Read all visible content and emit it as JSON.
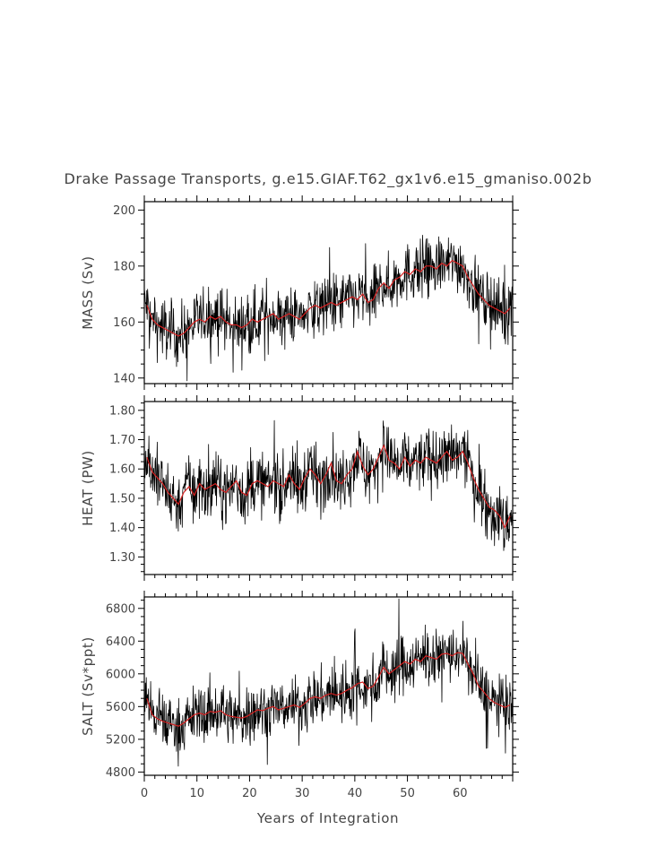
{
  "chart_data": {
    "type": "line",
    "title": "Drake Passage Transports, g.e15.GIAF.T62_gx1v6.e15_gmaniso.002b",
    "xlabel": "Years of Integration",
    "xlim": [
      0,
      70
    ],
    "x_ticks": [
      0,
      10,
      20,
      30,
      40,
      50,
      60
    ],
    "x_tick_labels": [
      "0",
      "10",
      "20",
      "30",
      "40",
      "50",
      "60"
    ],
    "series_colors": {
      "monthly": "#000000",
      "annual": "#d62020"
    },
    "panels": [
      {
        "id": "mass",
        "ylabel": "MASS (Sv)",
        "ylim": [
          138,
          203
        ],
        "y_ticks": [
          140,
          160,
          180,
          200
        ],
        "y_tick_labels": [
          "140",
          "160",
          "180",
          "200"
        ],
        "noise": 7,
        "monthly_extremes": {
          "max": 201,
          "min": 139
        },
        "annual_x": [
          0.5,
          1.5,
          2.5,
          3.5,
          4.5,
          5.5,
          6.5,
          7.5,
          8.5,
          9.5,
          10.5,
          11.5,
          12.5,
          13.5,
          14.5,
          15.5,
          16.5,
          17.5,
          18.5,
          19.5,
          20.5,
          21.5,
          22.5,
          23.5,
          24.5,
          25.5,
          26.5,
          27.5,
          28.5,
          29.5,
          30.5,
          31.5,
          32.5,
          33.5,
          34.5,
          35.5,
          36.5,
          37.5,
          38.5,
          39.5,
          40.5,
          41.5,
          42.5,
          43.5,
          44.5,
          45.5,
          46.5,
          47.5,
          48.5,
          49.5,
          50.5,
          51.5,
          52.5,
          53.5,
          54.5,
          55.5,
          56.5,
          57.5,
          58.5,
          59.5,
          60.5,
          61.5,
          62.5,
          63.5,
          64.5,
          65.5,
          66.5,
          67.5,
          68.5,
          69.5
        ],
        "annual_values": [
          166,
          161,
          159,
          158,
          157,
          156,
          155,
          156,
          158,
          160,
          161,
          160,
          162,
          161,
          162,
          160,
          159,
          159,
          158,
          159,
          161,
          160,
          161,
          162,
          163,
          161,
          162,
          163,
          162,
          161,
          163,
          165,
          166,
          165,
          166,
          167,
          166,
          167,
          168,
          169,
          168,
          170,
          167,
          168,
          172,
          174,
          172,
          175,
          176,
          178,
          177,
          179,
          178,
          180,
          180,
          179,
          181,
          180,
          182,
          181,
          180,
          176,
          173,
          170,
          168,
          166,
          165,
          164,
          163,
          165
        ]
      },
      {
        "id": "heat",
        "ylabel": "HEAT (PW)",
        "ylim": [
          1.24,
          1.83
        ],
        "y_ticks": [
          1.3,
          1.4,
          1.5,
          1.6,
          1.7,
          1.8
        ],
        "y_tick_labels": [
          "1.30",
          "1.40",
          "1.50",
          "1.60",
          "1.70",
          "1.80"
        ],
        "noise": 0.07,
        "monthly_extremes": {
          "max": 1.83,
          "min": 1.28
        },
        "annual_x": [
          0.5,
          1.5,
          2.5,
          3.5,
          4.5,
          5.5,
          6.5,
          7.5,
          8.5,
          9.5,
          10.5,
          11.5,
          12.5,
          13.5,
          14.5,
          15.5,
          16.5,
          17.5,
          18.5,
          19.5,
          20.5,
          21.5,
          22.5,
          23.5,
          24.5,
          25.5,
          26.5,
          27.5,
          28.5,
          29.5,
          30.5,
          31.5,
          32.5,
          33.5,
          34.5,
          35.5,
          36.5,
          37.5,
          38.5,
          39.5,
          40.5,
          41.5,
          42.5,
          43.5,
          44.5,
          45.5,
          46.5,
          47.5,
          48.5,
          49.5,
          50.5,
          51.5,
          52.5,
          53.5,
          54.5,
          55.5,
          56.5,
          57.5,
          58.5,
          59.5,
          60.5,
          61.5,
          62.5,
          63.5,
          64.5,
          65.5,
          66.5,
          67.5,
          68.5,
          69.5
        ],
        "annual_values": [
          1.64,
          1.59,
          1.57,
          1.55,
          1.52,
          1.5,
          1.48,
          1.52,
          1.54,
          1.51,
          1.55,
          1.53,
          1.54,
          1.55,
          1.53,
          1.52,
          1.54,
          1.56,
          1.52,
          1.51,
          1.55,
          1.56,
          1.55,
          1.54,
          1.56,
          1.55,
          1.54,
          1.58,
          1.55,
          1.53,
          1.57,
          1.6,
          1.58,
          1.55,
          1.58,
          1.62,
          1.56,
          1.55,
          1.58,
          1.6,
          1.66,
          1.61,
          1.58,
          1.6,
          1.64,
          1.68,
          1.63,
          1.62,
          1.6,
          1.64,
          1.61,
          1.63,
          1.62,
          1.64,
          1.63,
          1.62,
          1.64,
          1.66,
          1.63,
          1.64,
          1.66,
          1.62,
          1.57,
          1.53,
          1.5,
          1.47,
          1.46,
          1.44,
          1.4,
          1.44
        ]
      },
      {
        "id": "salt",
        "ylabel": "SALT (Sv*ppt)",
        "ylim": [
          4760,
          6940
        ],
        "y_ticks": [
          4800,
          5200,
          5600,
          6000,
          6400,
          6800
        ],
        "y_tick_labels": [
          "4800",
          "5200",
          "5600",
          "6000",
          "6400",
          "6800"
        ],
        "noise": 230,
        "monthly_extremes": {
          "max": 6940,
          "min": 4790
        },
        "annual_x": [
          0.5,
          1.5,
          2.5,
          3.5,
          4.5,
          5.5,
          6.5,
          7.5,
          8.5,
          9.5,
          10.5,
          11.5,
          12.5,
          13.5,
          14.5,
          15.5,
          16.5,
          17.5,
          18.5,
          19.5,
          20.5,
          21.5,
          22.5,
          23.5,
          24.5,
          25.5,
          26.5,
          27.5,
          28.5,
          29.5,
          30.5,
          31.5,
          32.5,
          33.5,
          34.5,
          35.5,
          36.5,
          37.5,
          38.5,
          39.5,
          40.5,
          41.5,
          42.5,
          43.5,
          44.5,
          45.5,
          46.5,
          47.5,
          48.5,
          49.5,
          50.5,
          51.5,
          52.5,
          53.5,
          54.5,
          55.5,
          56.5,
          57.5,
          58.5,
          59.5,
          60.5,
          61.5,
          62.5,
          63.5,
          64.5,
          65.5,
          66.5,
          67.5,
          68.5,
          69.5
        ],
        "annual_values": [
          5700,
          5500,
          5450,
          5420,
          5400,
          5380,
          5360,
          5400,
          5450,
          5500,
          5520,
          5500,
          5540,
          5530,
          5550,
          5500,
          5480,
          5470,
          5460,
          5480,
          5520,
          5560,
          5550,
          5580,
          5600,
          5560,
          5580,
          5600,
          5620,
          5590,
          5640,
          5700,
          5720,
          5700,
          5740,
          5760,
          5740,
          5760,
          5800,
          5830,
          5880,
          5900,
          5820,
          5850,
          5960,
          6080,
          6000,
          6050,
          6100,
          6150,
          6120,
          6180,
          6150,
          6220,
          6200,
          6180,
          6240,
          6250,
          6220,
          6260,
          6250,
          6120,
          6000,
          5850,
          5780,
          5700,
          5650,
          5620,
          5590,
          5620
        ]
      }
    ]
  }
}
